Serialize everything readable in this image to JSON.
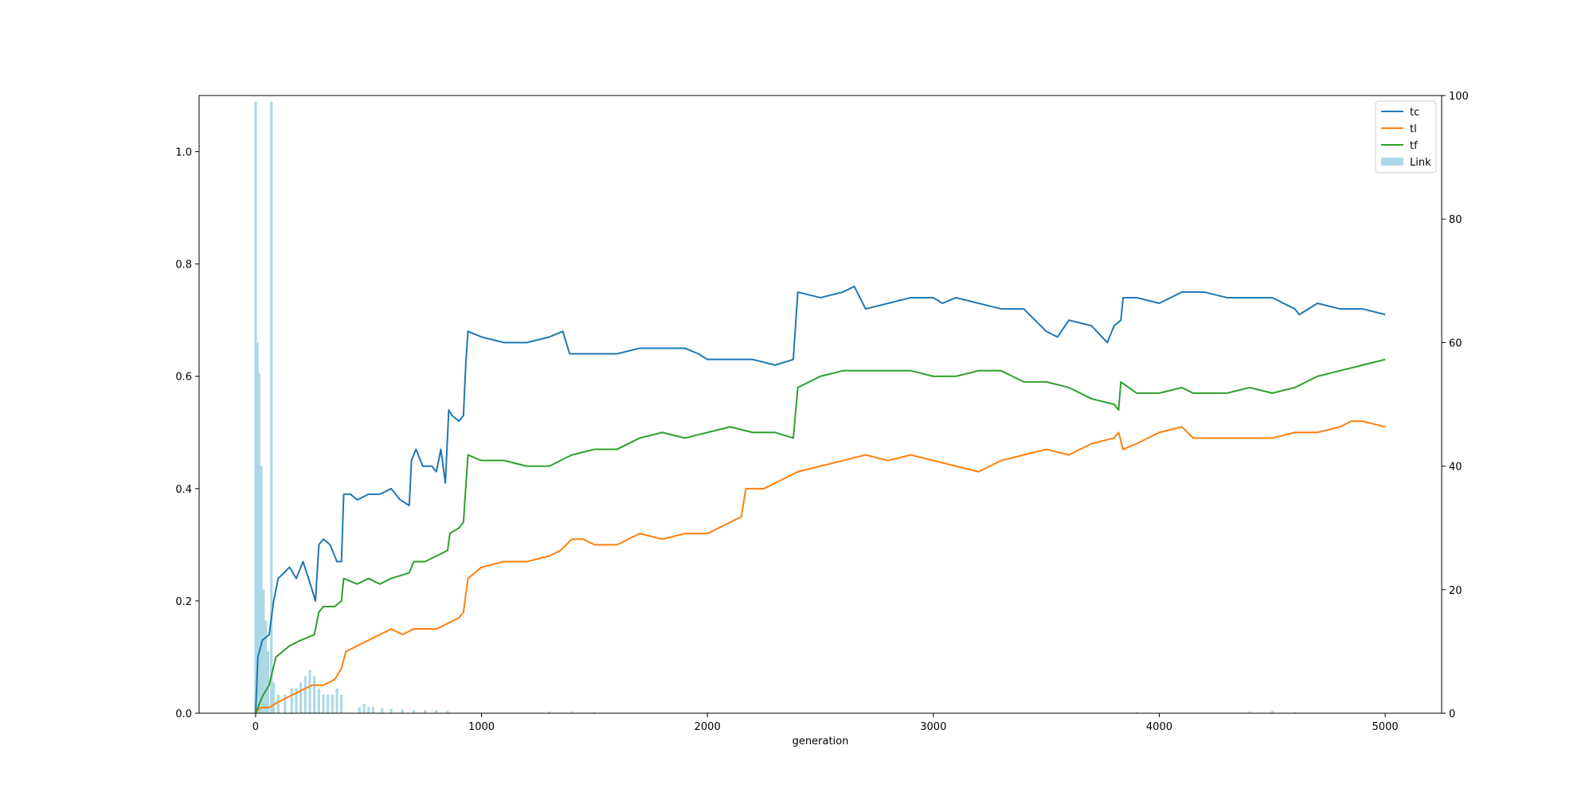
{
  "chart_data": {
    "type": "line",
    "xlabel": "generation",
    "xlim": [
      -250,
      5250
    ],
    "ylim_left": [
      0,
      1.1
    ],
    "ylim_right": [
      0,
      100
    ],
    "x_ticks": [
      "0",
      "1000",
      "2000",
      "3000",
      "4000",
      "5000"
    ],
    "left_y_ticks": [
      "0.0",
      "0.2",
      "0.4",
      "0.6",
      "0.8",
      "1.0"
    ],
    "right_y_ticks": [
      "0",
      "20",
      "40",
      "60",
      "80",
      "100"
    ],
    "grid": false,
    "legend_position": "top-right",
    "legend": [
      {
        "label": "tc",
        "color": "#1f77b4",
        "kind": "line"
      },
      {
        "label": "tl",
        "color": "#ff7f0e",
        "kind": "line"
      },
      {
        "label": "tf",
        "color": "#2ca02c",
        "kind": "line"
      },
      {
        "label": "Link",
        "color": "#add8e6",
        "kind": "bar"
      }
    ],
    "series": [
      {
        "name": "tc",
        "color": "#1f77b4",
        "axis": "left",
        "points": [
          [
            0,
            0
          ],
          [
            10,
            0.1
          ],
          [
            30,
            0.13
          ],
          [
            60,
            0.14
          ],
          [
            80,
            0.2
          ],
          [
            100,
            0.24
          ],
          [
            150,
            0.26
          ],
          [
            180,
            0.24
          ],
          [
            210,
            0.27
          ],
          [
            250,
            0.22
          ],
          [
            265,
            0.2
          ],
          [
            280,
            0.3
          ],
          [
            300,
            0.31
          ],
          [
            330,
            0.3
          ],
          [
            360,
            0.27
          ],
          [
            380,
            0.27
          ],
          [
            390,
            0.39
          ],
          [
            420,
            0.39
          ],
          [
            450,
            0.38
          ],
          [
            500,
            0.39
          ],
          [
            550,
            0.39
          ],
          [
            600,
            0.4
          ],
          [
            640,
            0.38
          ],
          [
            680,
            0.37
          ],
          [
            690,
            0.45
          ],
          [
            710,
            0.47
          ],
          [
            740,
            0.44
          ],
          [
            780,
            0.44
          ],
          [
            800,
            0.43
          ],
          [
            820,
            0.47
          ],
          [
            840,
            0.41
          ],
          [
            855,
            0.54
          ],
          [
            870,
            0.53
          ],
          [
            900,
            0.52
          ],
          [
            920,
            0.53
          ],
          [
            930,
            0.62
          ],
          [
            940,
            0.68
          ],
          [
            1000,
            0.67
          ],
          [
            1100,
            0.66
          ],
          [
            1200,
            0.66
          ],
          [
            1300,
            0.67
          ],
          [
            1360,
            0.68
          ],
          [
            1390,
            0.64
          ],
          [
            1500,
            0.64
          ],
          [
            1600,
            0.64
          ],
          [
            1700,
            0.65
          ],
          [
            1800,
            0.65
          ],
          [
            1900,
            0.65
          ],
          [
            1960,
            0.64
          ],
          [
            2000,
            0.63
          ],
          [
            2100,
            0.63
          ],
          [
            2200,
            0.63
          ],
          [
            2300,
            0.62
          ],
          [
            2380,
            0.63
          ],
          [
            2400,
            0.75
          ],
          [
            2500,
            0.74
          ],
          [
            2600,
            0.75
          ],
          [
            2650,
            0.76
          ],
          [
            2700,
            0.72
          ],
          [
            2800,
            0.73
          ],
          [
            2900,
            0.74
          ],
          [
            3000,
            0.74
          ],
          [
            3040,
            0.73
          ],
          [
            3100,
            0.74
          ],
          [
            3200,
            0.73
          ],
          [
            3300,
            0.72
          ],
          [
            3400,
            0.72
          ],
          [
            3500,
            0.68
          ],
          [
            3550,
            0.67
          ],
          [
            3600,
            0.7
          ],
          [
            3700,
            0.69
          ],
          [
            3770,
            0.66
          ],
          [
            3800,
            0.69
          ],
          [
            3830,
            0.7
          ],
          [
            3840,
            0.74
          ],
          [
            3900,
            0.74
          ],
          [
            4000,
            0.73
          ],
          [
            4100,
            0.75
          ],
          [
            4200,
            0.75
          ],
          [
            4300,
            0.74
          ],
          [
            4400,
            0.74
          ],
          [
            4500,
            0.74
          ],
          [
            4600,
            0.72
          ],
          [
            4620,
            0.71
          ],
          [
            4700,
            0.73
          ],
          [
            4800,
            0.72
          ],
          [
            4900,
            0.72
          ],
          [
            5000,
            0.71
          ]
        ]
      },
      {
        "name": "tl",
        "color": "#ff7f0e",
        "axis": "left",
        "points": [
          [
            0,
            0
          ],
          [
            20,
            0.01
          ],
          [
            60,
            0.01
          ],
          [
            100,
            0.02
          ],
          [
            150,
            0.03
          ],
          [
            200,
            0.04
          ],
          [
            250,
            0.05
          ],
          [
            300,
            0.05
          ],
          [
            350,
            0.06
          ],
          [
            380,
            0.08
          ],
          [
            400,
            0.11
          ],
          [
            450,
            0.12
          ],
          [
            500,
            0.13
          ],
          [
            550,
            0.14
          ],
          [
            600,
            0.15
          ],
          [
            650,
            0.14
          ],
          [
            700,
            0.15
          ],
          [
            750,
            0.15
          ],
          [
            800,
            0.15
          ],
          [
            850,
            0.16
          ],
          [
            900,
            0.17
          ],
          [
            920,
            0.18
          ],
          [
            940,
            0.24
          ],
          [
            1000,
            0.26
          ],
          [
            1100,
            0.27
          ],
          [
            1200,
            0.27
          ],
          [
            1300,
            0.28
          ],
          [
            1350,
            0.29
          ],
          [
            1400,
            0.31
          ],
          [
            1450,
            0.31
          ],
          [
            1500,
            0.3
          ],
          [
            1600,
            0.3
          ],
          [
            1700,
            0.32
          ],
          [
            1800,
            0.31
          ],
          [
            1900,
            0.32
          ],
          [
            2000,
            0.32
          ],
          [
            2100,
            0.34
          ],
          [
            2150,
            0.35
          ],
          [
            2170,
            0.4
          ],
          [
            2250,
            0.4
          ],
          [
            2300,
            0.41
          ],
          [
            2400,
            0.43
          ],
          [
            2500,
            0.44
          ],
          [
            2600,
            0.45
          ],
          [
            2700,
            0.46
          ],
          [
            2800,
            0.45
          ],
          [
            2900,
            0.46
          ],
          [
            3000,
            0.45
          ],
          [
            3100,
            0.44
          ],
          [
            3200,
            0.43
          ],
          [
            3300,
            0.45
          ],
          [
            3400,
            0.46
          ],
          [
            3500,
            0.47
          ],
          [
            3600,
            0.46
          ],
          [
            3700,
            0.48
          ],
          [
            3800,
            0.49
          ],
          [
            3820,
            0.5
          ],
          [
            3840,
            0.47
          ],
          [
            3900,
            0.48
          ],
          [
            4000,
            0.5
          ],
          [
            4100,
            0.51
          ],
          [
            4150,
            0.49
          ],
          [
            4200,
            0.49
          ],
          [
            4300,
            0.49
          ],
          [
            4400,
            0.49
          ],
          [
            4500,
            0.49
          ],
          [
            4600,
            0.5
          ],
          [
            4700,
            0.5
          ],
          [
            4800,
            0.51
          ],
          [
            4850,
            0.52
          ],
          [
            4900,
            0.52
          ],
          [
            5000,
            0.51
          ]
        ]
      },
      {
        "name": "tf",
        "color": "#2ca02c",
        "axis": "left",
        "points": [
          [
            0,
            0
          ],
          [
            30,
            0.03
          ],
          [
            60,
            0.05
          ],
          [
            90,
            0.1
          ],
          [
            150,
            0.12
          ],
          [
            200,
            0.13
          ],
          [
            260,
            0.14
          ],
          [
            280,
            0.18
          ],
          [
            300,
            0.19
          ],
          [
            350,
            0.19
          ],
          [
            380,
            0.2
          ],
          [
            390,
            0.24
          ],
          [
            450,
            0.23
          ],
          [
            500,
            0.24
          ],
          [
            550,
            0.23
          ],
          [
            600,
            0.24
          ],
          [
            680,
            0.25
          ],
          [
            700,
            0.27
          ],
          [
            750,
            0.27
          ],
          [
            800,
            0.28
          ],
          [
            850,
            0.29
          ],
          [
            860,
            0.32
          ],
          [
            900,
            0.33
          ],
          [
            920,
            0.34
          ],
          [
            940,
            0.46
          ],
          [
            1000,
            0.45
          ],
          [
            1100,
            0.45
          ],
          [
            1200,
            0.44
          ],
          [
            1300,
            0.44
          ],
          [
            1400,
            0.46
          ],
          [
            1500,
            0.47
          ],
          [
            1600,
            0.47
          ],
          [
            1700,
            0.49
          ],
          [
            1800,
            0.5
          ],
          [
            1900,
            0.49
          ],
          [
            2000,
            0.5
          ],
          [
            2100,
            0.51
          ],
          [
            2200,
            0.5
          ],
          [
            2300,
            0.5
          ],
          [
            2380,
            0.49
          ],
          [
            2400,
            0.58
          ],
          [
            2500,
            0.6
          ],
          [
            2600,
            0.61
          ],
          [
            2700,
            0.61
          ],
          [
            2800,
            0.61
          ],
          [
            2900,
            0.61
          ],
          [
            3000,
            0.6
          ],
          [
            3100,
            0.6
          ],
          [
            3200,
            0.61
          ],
          [
            3300,
            0.61
          ],
          [
            3400,
            0.59
          ],
          [
            3500,
            0.59
          ],
          [
            3600,
            0.58
          ],
          [
            3700,
            0.56
          ],
          [
            3800,
            0.55
          ],
          [
            3820,
            0.54
          ],
          [
            3830,
            0.59
          ],
          [
            3900,
            0.57
          ],
          [
            4000,
            0.57
          ],
          [
            4100,
            0.58
          ],
          [
            4150,
            0.57
          ],
          [
            4200,
            0.57
          ],
          [
            4300,
            0.57
          ],
          [
            4400,
            0.58
          ],
          [
            4500,
            0.57
          ],
          [
            4600,
            0.58
          ],
          [
            4700,
            0.6
          ],
          [
            4800,
            0.61
          ],
          [
            4900,
            0.62
          ],
          [
            5000,
            0.63
          ]
        ]
      },
      {
        "name": "Link",
        "color": "#add8e6",
        "axis": "right",
        "kind": "bar",
        "points": [
          [
            0,
            99
          ],
          [
            8,
            60
          ],
          [
            15,
            55
          ],
          [
            25,
            40
          ],
          [
            35,
            20
          ],
          [
            45,
            15
          ],
          [
            55,
            10
          ],
          [
            70,
            99
          ],
          [
            80,
            5
          ],
          [
            100,
            3
          ],
          [
            130,
            3
          ],
          [
            160,
            4
          ],
          [
            180,
            4
          ],
          [
            200,
            5
          ],
          [
            220,
            6
          ],
          [
            240,
            7
          ],
          [
            260,
            6
          ],
          [
            280,
            4
          ],
          [
            300,
            3
          ],
          [
            320,
            3
          ],
          [
            340,
            3
          ],
          [
            360,
            4
          ],
          [
            380,
            3
          ],
          [
            460,
            1
          ],
          [
            480,
            1.5
          ],
          [
            500,
            1
          ],
          [
            520,
            1
          ],
          [
            560,
            0.8
          ],
          [
            600,
            0.7
          ],
          [
            650,
            0.6
          ],
          [
            700,
            0.5
          ],
          [
            750,
            0.5
          ],
          [
            800,
            0.5
          ],
          [
            850,
            0.4
          ],
          [
            1300,
            0.3
          ],
          [
            1400,
            0.3
          ],
          [
            1500,
            0.2
          ],
          [
            2000,
            0.2
          ],
          [
            2500,
            0.1
          ],
          [
            3000,
            0.1
          ],
          [
            3500,
            0.1
          ],
          [
            3900,
            0.2
          ],
          [
            4400,
            0.3
          ],
          [
            4500,
            0.4
          ],
          [
            4600,
            0.2
          ]
        ]
      }
    ]
  }
}
